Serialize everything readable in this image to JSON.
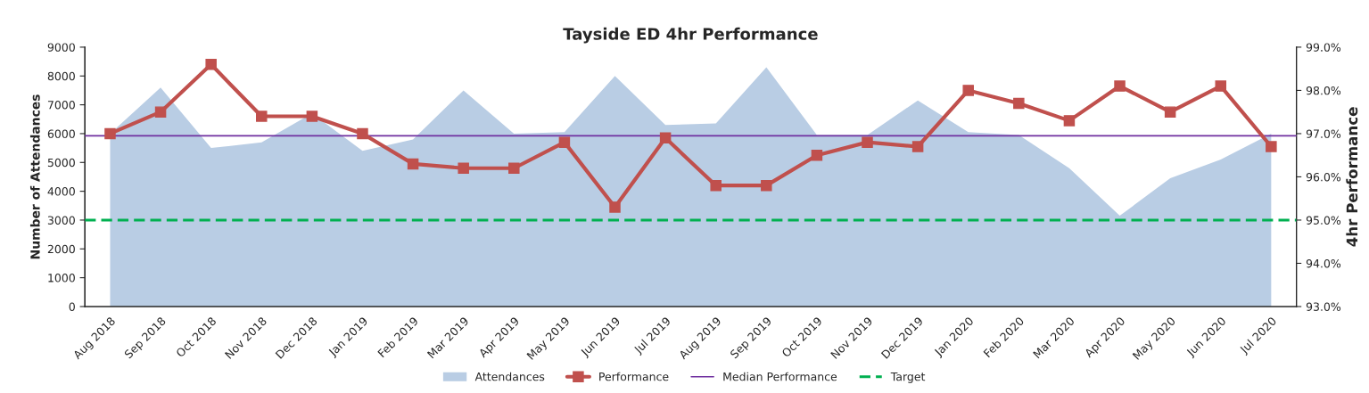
{
  "chart_data": {
    "type": "area",
    "title": "Tayside ED 4hr Performance",
    "ylabel": "Number of Attendances",
    "y2label": "4hr Performance",
    "categories": [
      "Aug 2018",
      "Sep 2018",
      "Oct 2018",
      "Nov 2018",
      "Dec 2018",
      "Jan 2019",
      "Feb 2019",
      "Mar 2019",
      "Apr 2019",
      "May 2019",
      "Jun 2019",
      "Jul 2019",
      "Aug 2019",
      "Sep 2019",
      "Oct 2019",
      "Nov 2019",
      "Dec 2019",
      "Jan 2020",
      "Feb 2020",
      "Mar 2020",
      "Apr 2020",
      "May 2020",
      "Jun 2020",
      "Jul 2020"
    ],
    "series": [
      {
        "name": "Attendances",
        "color": "#b9cde4",
        "values": [
          6000,
          7600,
          5500,
          5700,
          6700,
          5400,
          5800,
          7500,
          6000,
          6050,
          8000,
          6300,
          6350,
          8300,
          5950,
          5950,
          7150,
          6050,
          5950,
          4800,
          3150,
          4450,
          5100,
          6000
        ]
      },
      {
        "name": "Performance",
        "type": "line",
        "axis": "y2",
        "color": "#c0504d",
        "marker": "square",
        "line_style": "solid",
        "values": [
          97.0,
          97.5,
          98.6,
          97.4,
          97.4,
          97.0,
          96.3,
          96.2,
          96.2,
          96.8,
          95.3,
          96.9,
          95.8,
          95.8,
          96.5,
          96.8,
          96.7,
          98.0,
          97.7,
          97.3,
          98.1,
          97.5,
          98.1,
          96.7
        ]
      }
    ],
    "ref_lines": [
      {
        "axis": "y2",
        "value": 96.95,
        "label": "Median Performance",
        "color": "#7030a0",
        "line_style": "solid"
      },
      {
        "axis": "y2",
        "value": 95.0,
        "label": "Target",
        "color": "#00b050",
        "line_style": "dashed"
      }
    ],
    "ylim": [
      0,
      9000
    ],
    "yticks": [
      0,
      1000,
      2000,
      3000,
      4000,
      5000,
      6000,
      7000,
      8000,
      9000
    ],
    "y2lim": [
      93.0,
      99.0
    ],
    "y2ticks": [
      {
        "value": 93.0,
        "label": "93.0%"
      },
      {
        "value": 94.0,
        "label": "94.0%"
      },
      {
        "value": 95.0,
        "label": "95.0%"
      },
      {
        "value": 96.0,
        "label": "96.0%"
      },
      {
        "value": 97.0,
        "label": "97.0%"
      },
      {
        "value": 98.0,
        "label": "98.0%"
      },
      {
        "value": 99.0,
        "label": "99.0%"
      }
    ],
    "grid": false,
    "legend": "bottom"
  }
}
